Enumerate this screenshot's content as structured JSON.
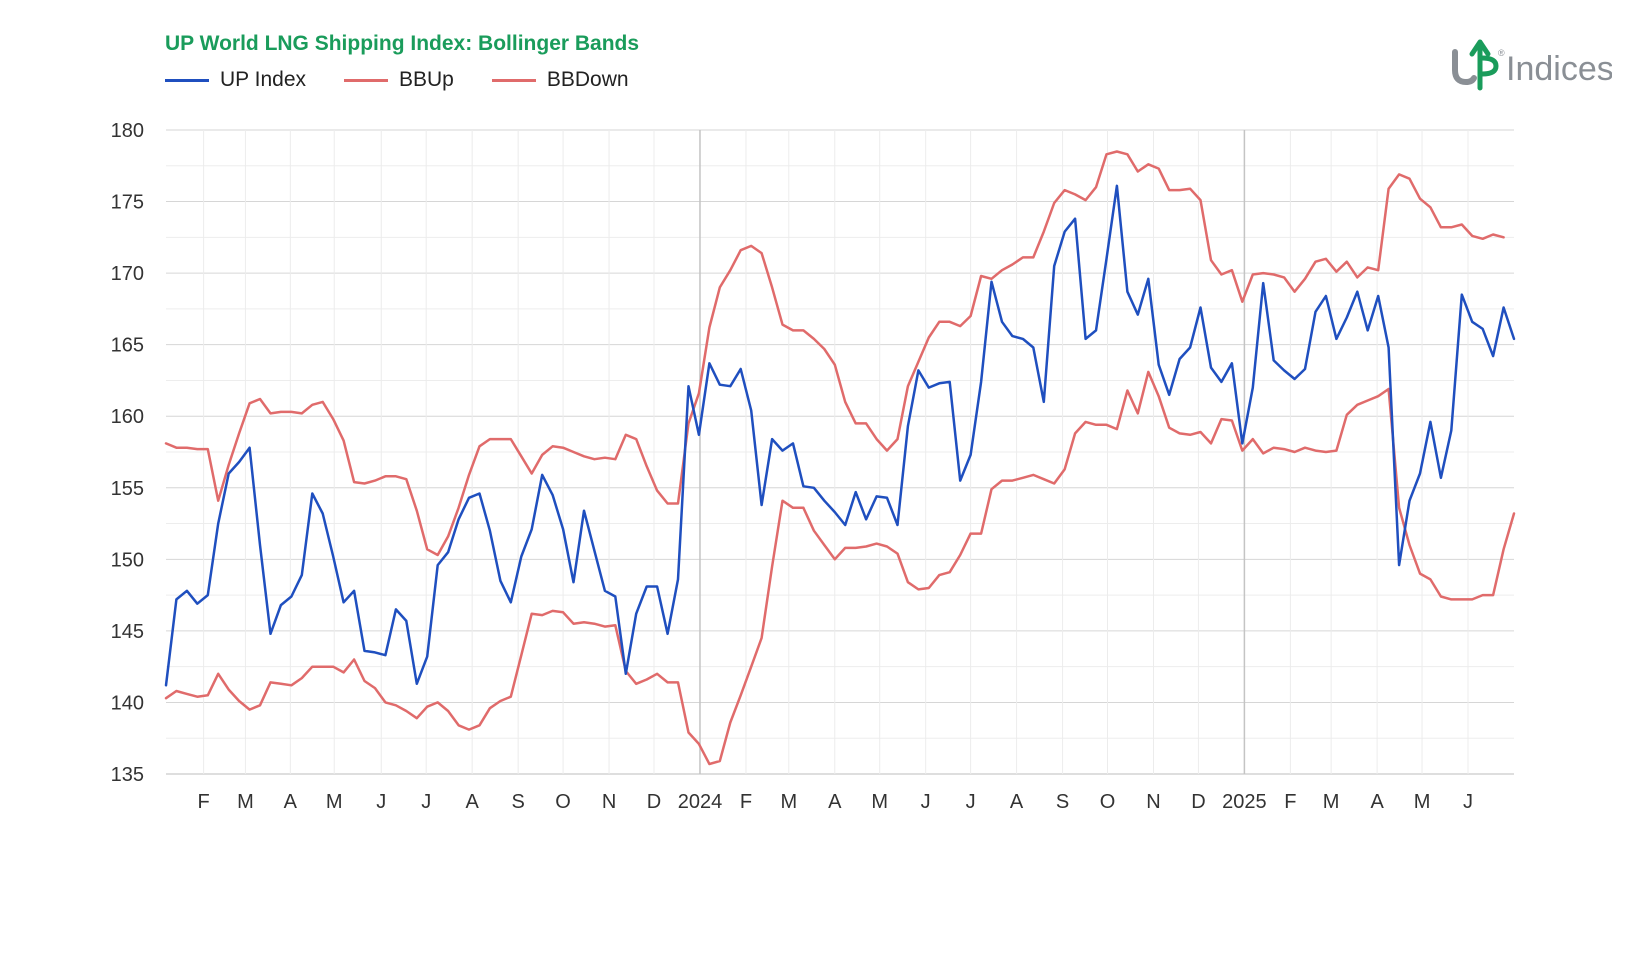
{
  "title": "UP World LNG Shipping Index: Bollinger Bands",
  "logo": {
    "text": "Indices",
    "mark": "UP",
    "registered": "®"
  },
  "colors": {
    "title": "#1a9c5b",
    "up_index": "#1f4fbf",
    "bbup": "#e06b6b",
    "bbdown": "#e06b6b",
    "logo": "#8a8f95",
    "logo_accent": "#1a9c5b"
  },
  "chart_data": {
    "type": "line",
    "title": "UP World LNG Shipping Index: Bollinger Bands",
    "xlabel": "",
    "ylabel": "",
    "ylim": [
      135,
      180
    ],
    "yticks": [
      135,
      140,
      145,
      150,
      155,
      160,
      165,
      170,
      175,
      180
    ],
    "grid": true,
    "legend": "top-left",
    "x_axis": {
      "start": "2023-01-06",
      "interval": "weekly",
      "tick_labels": [
        {
          "label": "F",
          "week": 3.6
        },
        {
          "label": "M",
          "week": 7.6
        },
        {
          "label": "A",
          "week": 11.9
        },
        {
          "label": "M",
          "week": 16.1
        },
        {
          "label": "J",
          "week": 20.6
        },
        {
          "label": "J",
          "week": 24.9
        },
        {
          "label": "A",
          "week": 29.3
        },
        {
          "label": "S",
          "week": 33.7
        },
        {
          "label": "O",
          "week": 38.0
        },
        {
          "label": "N",
          "week": 42.4
        },
        {
          "label": "D",
          "week": 46.7
        },
        {
          "label": "2024",
          "week": 51.1
        },
        {
          "label": "F",
          "week": 55.5
        },
        {
          "label": "M",
          "week": 59.6
        },
        {
          "label": "A",
          "week": 64.0
        },
        {
          "label": "M",
          "week": 68.3
        },
        {
          "label": "J",
          "week": 72.7
        },
        {
          "label": "J",
          "week": 77.0
        },
        {
          "label": "A",
          "week": 81.4
        },
        {
          "label": "S",
          "week": 85.8
        },
        {
          "label": "O",
          "week": 90.1
        },
        {
          "label": "N",
          "week": 94.5
        },
        {
          "label": "D",
          "week": 98.8
        },
        {
          "label": "2025",
          "week": 103.2
        },
        {
          "label": "F",
          "week": 107.6
        },
        {
          "label": "M",
          "week": 111.5
        },
        {
          "label": "A",
          "week": 115.9
        },
        {
          "label": "M",
          "week": 120.2
        },
        {
          "label": "J",
          "week": 124.6
        }
      ]
    },
    "series": [
      {
        "name": "UP Index",
        "values": [
          141.2,
          147.2,
          147.8,
          146.9,
          147.5,
          152.5,
          156.0,
          156.8,
          157.8,
          151.0,
          144.8,
          146.8,
          147.4,
          148.9,
          154.6,
          153.2,
          150.2,
          147.0,
          147.8,
          143.6,
          143.5,
          143.3,
          146.5,
          145.7,
          141.3,
          143.2,
          149.6,
          150.5,
          152.8,
          154.3,
          154.6,
          152.0,
          148.5,
          147.0,
          150.2,
          152.1,
          155.9,
          154.5,
          152.1,
          148.4,
          153.4,
          150.6,
          147.8,
          147.4,
          142.0,
          146.2,
          148.1,
          148.1,
          144.8,
          148.6,
          162.1,
          158.7,
          163.7,
          162.2,
          162.1,
          163.3,
          160.4,
          153.8,
          158.4,
          157.6,
          158.1,
          155.1,
          155.0,
          154.1,
          153.3,
          152.4,
          154.7,
          152.8,
          154.4,
          154.3,
          152.4,
          159.3,
          163.2,
          162.0,
          162.3,
          162.4,
          155.5,
          157.3,
          162.4,
          169.4,
          166.6,
          165.6,
          165.4,
          164.8,
          161.0,
          170.5,
          172.9,
          173.8,
          165.4,
          166.0,
          171.0,
          176.1,
          168.7,
          167.1,
          169.6,
          163.6,
          161.5,
          164.0,
          164.8,
          167.6,
          163.4,
          162.4,
          163.7,
          158.1,
          162.0,
          169.3,
          163.9,
          163.2,
          162.6,
          163.3,
          167.3,
          168.4,
          165.4,
          166.9,
          168.7,
          166.0,
          168.4,
          164.8,
          149.6,
          154.1,
          156.0,
          159.6,
          155.7,
          159.0,
          168.5,
          166.6,
          166.1,
          164.2,
          167.6,
          165.4
        ]
      },
      {
        "name": "BBUp",
        "values": [
          158.1,
          157.8,
          157.8,
          157.7,
          157.7,
          154.1,
          156.6,
          158.8,
          160.9,
          161.2,
          160.2,
          160.3,
          160.3,
          160.2,
          160.8,
          161.0,
          159.8,
          158.3,
          155.4,
          155.3,
          155.5,
          155.8,
          155.8,
          155.6,
          153.4,
          150.7,
          150.3,
          151.6,
          153.6,
          155.9,
          157.9,
          158.4,
          158.4,
          158.4,
          157.2,
          156.0,
          157.3,
          157.9,
          157.8,
          157.5,
          157.2,
          157.0,
          157.1,
          157.0,
          158.7,
          158.4,
          156.5,
          154.8,
          153.9,
          153.9,
          159.5,
          161.6,
          166.2,
          169.0,
          170.2,
          171.6,
          171.9,
          171.4,
          169.0,
          166.4,
          166.0,
          166.0,
          165.4,
          164.7,
          163.6,
          161.0,
          159.5,
          159.5,
          158.4,
          157.6,
          158.4,
          162.1,
          163.8,
          165.5,
          166.6,
          166.6,
          166.3,
          167.0,
          169.8,
          169.6,
          170.2,
          170.6,
          171.1,
          171.1,
          172.9,
          174.9,
          175.8,
          175.5,
          175.1,
          176.0,
          178.3,
          178.5,
          178.3,
          177.1,
          177.6,
          177.3,
          175.8,
          175.8,
          175.9,
          175.1,
          170.9,
          169.9,
          170.2,
          168.0,
          169.9,
          170.0,
          169.9,
          169.7,
          168.7,
          169.6,
          170.8,
          171.0,
          170.1,
          170.8,
          169.7,
          170.4,
          170.2,
          175.9,
          176.9,
          176.6,
          175.2,
          174.6,
          173.2,
          173.2,
          173.4,
          172.6,
          172.4,
          172.7,
          172.5
        ]
      },
      {
        "name": "BBDown",
        "values": [
          140.3,
          140.8,
          140.6,
          140.4,
          140.5,
          142.0,
          140.9,
          140.1,
          139.5,
          139.8,
          141.4,
          141.3,
          141.2,
          141.7,
          142.5,
          142.5,
          142.5,
          142.1,
          143.0,
          141.5,
          141.0,
          140.0,
          139.8,
          139.4,
          138.9,
          139.7,
          140.0,
          139.4,
          138.4,
          138.1,
          138.4,
          139.6,
          140.1,
          140.4,
          143.3,
          146.2,
          146.1,
          146.4,
          146.3,
          145.5,
          145.6,
          145.5,
          145.3,
          145.4,
          142.2,
          141.3,
          141.6,
          142.0,
          141.4,
          141.4,
          137.9,
          137.1,
          135.7,
          135.9,
          138.6,
          140.5,
          142.5,
          144.5,
          149.5,
          154.1,
          153.6,
          153.6,
          152.0,
          151.0,
          150.0,
          150.8,
          150.8,
          150.9,
          151.1,
          150.9,
          150.4,
          148.4,
          147.9,
          148.0,
          148.9,
          149.1,
          150.3,
          151.8,
          151.8,
          154.9,
          155.5,
          155.5,
          155.7,
          155.9,
          155.6,
          155.3,
          156.3,
          158.8,
          159.6,
          159.4,
          159.4,
          159.1,
          161.8,
          160.2,
          163.1,
          161.4,
          159.2,
          158.8,
          158.7,
          158.9,
          158.1,
          159.8,
          159.7,
          157.6,
          158.4,
          157.4,
          157.8,
          157.7,
          157.5,
          157.8,
          157.6,
          157.5,
          157.6,
          160.1,
          160.8,
          161.1,
          161.4,
          161.9,
          153.6,
          151.0,
          149.0,
          148.6,
          147.4,
          147.2,
          147.2,
          147.2,
          147.5,
          147.5,
          150.7,
          153.2
        ]
      }
    ]
  }
}
